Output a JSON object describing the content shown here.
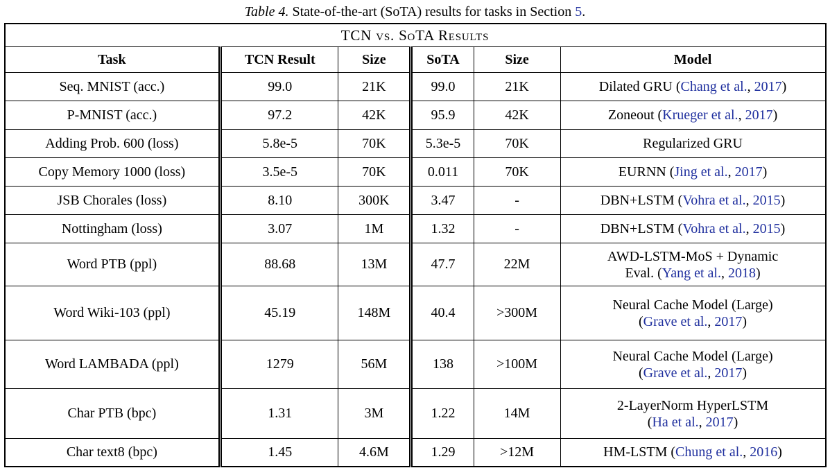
{
  "caption": {
    "label": "Table 4.",
    "body": " State-of-the-art (SoTA) results for tasks in Section ",
    "section_link": "5",
    "period": "."
  },
  "table": {
    "title": "TCN vs. SoTA Results",
    "columns": [
      "Task",
      "TCN Result",
      "Size",
      "SoTA",
      "Size",
      "Model"
    ],
    "rows": [
      {
        "task": "Seq. MNIST (acc.)",
        "tcn": "99.0",
        "tcn_size": "21K",
        "sota": "99.0",
        "sota_size": "21K",
        "model": [
          [
            {
              "t": "Dilated GRU ("
            },
            {
              "t": "Chang et al.",
              "link": true
            },
            {
              "t": ", "
            },
            {
              "t": "2017",
              "link": true
            },
            {
              "t": ")"
            }
          ]
        ]
      },
      {
        "task": "P-MNIST (acc.)",
        "tcn": "97.2",
        "tcn_size": "42K",
        "sota": "95.9",
        "sota_size": "42K",
        "model": [
          [
            {
              "t": "Zoneout ("
            },
            {
              "t": "Krueger et al.",
              "link": true
            },
            {
              "t": ", "
            },
            {
              "t": "2017",
              "link": true
            },
            {
              "t": ")"
            }
          ]
        ]
      },
      {
        "task": "Adding Prob. 600 (loss)",
        "tcn": "5.8e-5",
        "tcn_size": "70K",
        "sota": "5.3e-5",
        "sota_size": "70K",
        "model": [
          [
            {
              "t": "Regularized GRU"
            }
          ]
        ]
      },
      {
        "task": "Copy Memory 1000 (loss)",
        "tcn": "3.5e-5",
        "tcn_size": "70K",
        "sota": "0.011",
        "sota_size": "70K",
        "model": [
          [
            {
              "t": "EURNN ("
            },
            {
              "t": "Jing et al.",
              "link": true
            },
            {
              "t": ", "
            },
            {
              "t": "2017",
              "link": true
            },
            {
              "t": ")"
            }
          ]
        ]
      },
      {
        "task": "JSB Chorales (loss)",
        "tcn": "8.10",
        "tcn_size": "300K",
        "sota": "3.47",
        "sota_size": "-",
        "model": [
          [
            {
              "t": "DBN+LSTM ("
            },
            {
              "t": "Vohra et al.",
              "link": true
            },
            {
              "t": ", "
            },
            {
              "t": "2015",
              "link": true
            },
            {
              "t": ")"
            }
          ]
        ]
      },
      {
        "task": "Nottingham (loss)",
        "tcn": "3.07",
        "tcn_size": "1M",
        "sota": "1.32",
        "sota_size": "-",
        "model": [
          [
            {
              "t": "DBN+LSTM ("
            },
            {
              "t": "Vohra et al.",
              "link": true
            },
            {
              "t": ", "
            },
            {
              "t": "2015",
              "link": true
            },
            {
              "t": ")"
            }
          ]
        ]
      },
      {
        "task": "Word PTB (ppl)",
        "tcn": "88.68",
        "tcn_size": "13M",
        "sota": "47.7",
        "sota_size": "22M",
        "model": [
          [
            {
              "t": "AWD-LSTM-MoS + Dynamic"
            }
          ],
          [
            {
              "t": "Eval. ("
            },
            {
              "t": "Yang et al.",
              "link": true
            },
            {
              "t": ", "
            },
            {
              "t": "2018",
              "link": true
            },
            {
              "t": ")"
            }
          ]
        ]
      },
      {
        "task": "Word Wiki-103 (ppl)",
        "tcn": "45.19",
        "tcn_size": "148M",
        "sota": "40.4",
        "sota_size": ">300M",
        "model": [
          [
            {
              "t": "Neural Cache Model (Large)"
            }
          ],
          [
            {
              "t": "("
            },
            {
              "t": "Grave et al.",
              "link": true
            },
            {
              "t": ", "
            },
            {
              "t": "2017",
              "link": true
            },
            {
              "t": ")"
            }
          ]
        ]
      },
      {
        "task": "Word LAMBADA (ppl)",
        "tcn": "1279",
        "tcn_size": "56M",
        "sota": "138",
        "sota_size": ">100M",
        "model": [
          [
            {
              "t": "Neural Cache Model (Large)"
            }
          ],
          [
            {
              "t": "("
            },
            {
              "t": "Grave et al.",
              "link": true
            },
            {
              "t": ", "
            },
            {
              "t": "2017",
              "link": true
            },
            {
              "t": ")"
            }
          ]
        ]
      },
      {
        "task": "Char PTB (bpc)",
        "tcn": "1.31",
        "tcn_size": "3M",
        "sota": "1.22",
        "sota_size": "14M",
        "model": [
          [
            {
              "t": "2-LayerNorm HyperLSTM"
            }
          ],
          [
            {
              "t": "("
            },
            {
              "t": "Ha et al.",
              "link": true
            },
            {
              "t": ", "
            },
            {
              "t": "2017",
              "link": true
            },
            {
              "t": ")"
            }
          ]
        ]
      },
      {
        "task": "Char text8 (bpc)",
        "tcn": "1.45",
        "tcn_size": "4.6M",
        "sota": "1.29",
        "sota_size": ">12M",
        "model": [
          [
            {
              "t": "HM-LSTM ("
            },
            {
              "t": "Chung et al.",
              "link": true
            },
            {
              "t": ", "
            },
            {
              "t": "2016",
              "link": true
            },
            {
              "t": ")"
            }
          ]
        ]
      }
    ]
  },
  "colors": {
    "link_blue": "#1F2F9E",
    "text": "#000000",
    "border": "#000000",
    "background": "#ffffff"
  }
}
